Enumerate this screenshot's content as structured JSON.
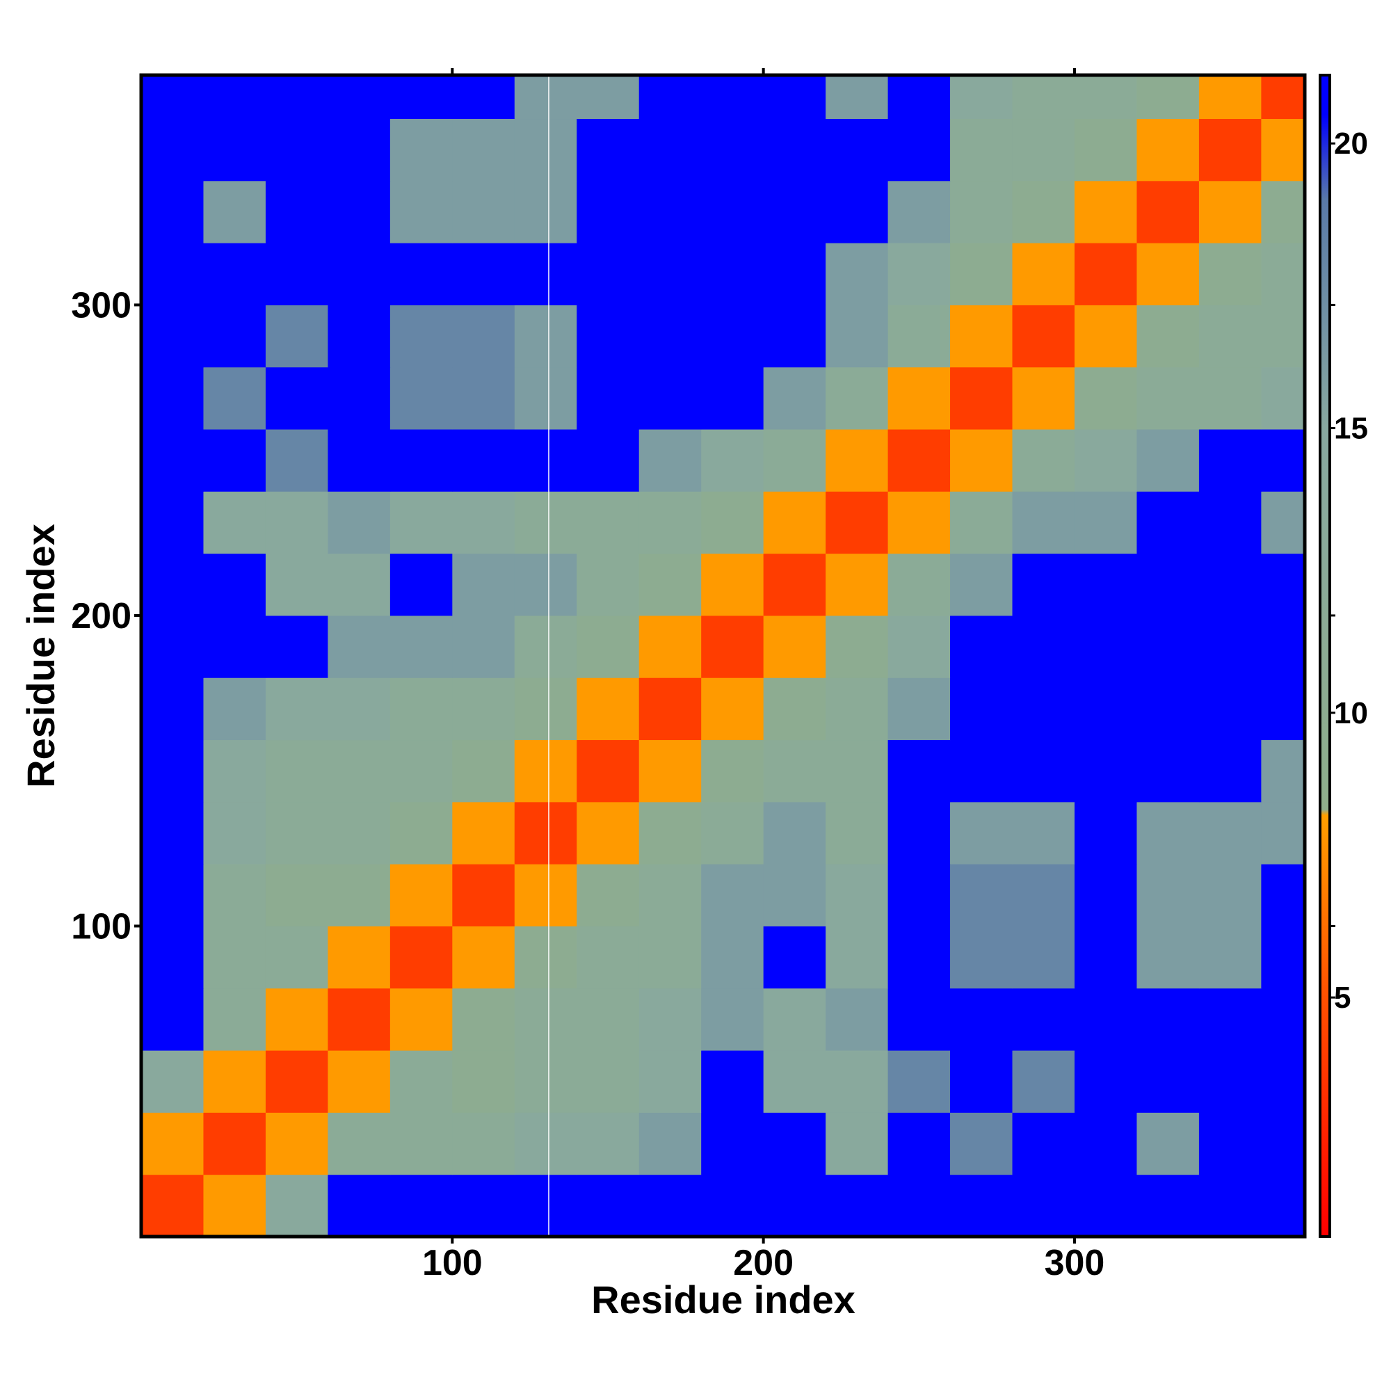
{
  "chart_data": {
    "type": "heatmap",
    "xlabel": "Residue index",
    "ylabel": "Residue index",
    "xlim": [
      0,
      374
    ],
    "ylim": [
      0,
      374
    ],
    "xticks": [
      100,
      200,
      300
    ],
    "yticks": [
      100,
      200,
      300
    ],
    "bins": [
      0,
      20,
      40,
      60,
      80,
      100,
      120,
      140,
      160,
      180,
      200,
      220,
      240,
      260,
      280,
      300,
      320,
      340,
      360,
      374
    ],
    "matrix": [
      [
        4,
        8,
        14,
        21,
        21,
        21,
        21,
        21,
        21,
        21,
        21,
        21,
        21,
        21,
        21,
        21,
        21,
        21,
        21
      ],
      [
        8,
        4,
        8,
        12,
        12,
        12,
        14,
        14,
        16,
        21,
        21,
        14,
        21,
        18,
        21,
        21,
        16,
        21,
        21
      ],
      [
        14,
        8,
        4,
        8,
        12,
        10,
        12,
        12,
        14,
        21,
        14,
        14,
        18,
        21,
        18,
        21,
        21,
        21,
        21
      ],
      [
        21,
        12,
        8,
        4,
        8,
        10,
        12,
        12,
        14,
        16,
        14,
        16,
        21,
        21,
        21,
        21,
        21,
        21,
        21
      ],
      [
        21,
        12,
        12,
        8,
        4,
        8,
        10,
        12,
        12,
        16,
        21,
        14,
        21,
        18,
        18,
        21,
        16,
        16,
        21
      ],
      [
        21,
        12,
        10,
        10,
        8,
        4,
        8,
        10,
        12,
        16,
        16,
        14,
        21,
        18,
        18,
        21,
        16,
        16,
        21
      ],
      [
        21,
        14,
        12,
        12,
        10,
        8,
        4,
        8,
        10,
        12,
        16,
        12,
        21,
        16,
        16,
        21,
        16,
        16,
        16
      ],
      [
        21,
        14,
        12,
        12,
        12,
        10,
        8,
        4,
        8,
        10,
        12,
        12,
        21,
        21,
        21,
        21,
        21,
        21,
        16
      ],
      [
        21,
        16,
        14,
        14,
        12,
        12,
        10,
        8,
        4,
        8,
        10,
        12,
        16,
        21,
        21,
        21,
        21,
        21,
        21
      ],
      [
        21,
        21,
        21,
        16,
        16,
        16,
        12,
        10,
        8,
        4,
        8,
        10,
        14,
        21,
        21,
        21,
        21,
        21,
        21
      ],
      [
        21,
        21,
        14,
        14,
        21,
        16,
        16,
        12,
        10,
        8,
        4,
        8,
        12,
        16,
        21,
        21,
        21,
        21,
        21
      ],
      [
        21,
        14,
        14,
        16,
        14,
        14,
        12,
        12,
        12,
        10,
        8,
        4,
        8,
        12,
        16,
        16,
        21,
        21,
        16
      ],
      [
        21,
        21,
        18,
        21,
        21,
        21,
        21,
        21,
        16,
        14,
        12,
        8,
        4,
        8,
        12,
        14,
        16,
        21,
        21
      ],
      [
        21,
        18,
        21,
        21,
        18,
        18,
        16,
        21,
        21,
        21,
        16,
        12,
        8,
        4,
        8,
        10,
        12,
        12,
        14
      ],
      [
        21,
        21,
        18,
        21,
        18,
        18,
        16,
        21,
        21,
        21,
        21,
        16,
        12,
        8,
        4,
        8,
        10,
        12,
        12
      ],
      [
        21,
        21,
        21,
        21,
        21,
        21,
        21,
        21,
        21,
        21,
        21,
        16,
        14,
        10,
        8,
        4,
        8,
        10,
        12
      ],
      [
        21,
        16,
        21,
        21,
        16,
        16,
        16,
        21,
        21,
        21,
        21,
        21,
        16,
        12,
        10,
        8,
        4,
        8,
        10
      ],
      [
        21,
        21,
        21,
        21,
        16,
        16,
        16,
        21,
        21,
        21,
        21,
        21,
        21,
        12,
        12,
        10,
        8,
        4,
        8
      ],
      [
        21,
        21,
        21,
        21,
        21,
        21,
        16,
        16,
        21,
        21,
        21,
        16,
        21,
        14,
        12,
        12,
        10,
        8,
        4
      ]
    ],
    "gap_x": 131,
    "clim": [
      0.8,
      21.2
    ],
    "cticks": [
      5,
      10,
      15,
      20
    ],
    "colorscale": [
      [
        0.8,
        "#ff0000"
      ],
      [
        5,
        "#ff5000"
      ],
      [
        8.2,
        "#ff9f00"
      ],
      [
        8.3,
        "#8fae8c"
      ],
      [
        15,
        "#88a8a0"
      ],
      [
        19,
        "#5a7aa8"
      ],
      [
        20.5,
        "#0000ff"
      ],
      [
        21.2,
        "#0000ff"
      ]
    ]
  }
}
